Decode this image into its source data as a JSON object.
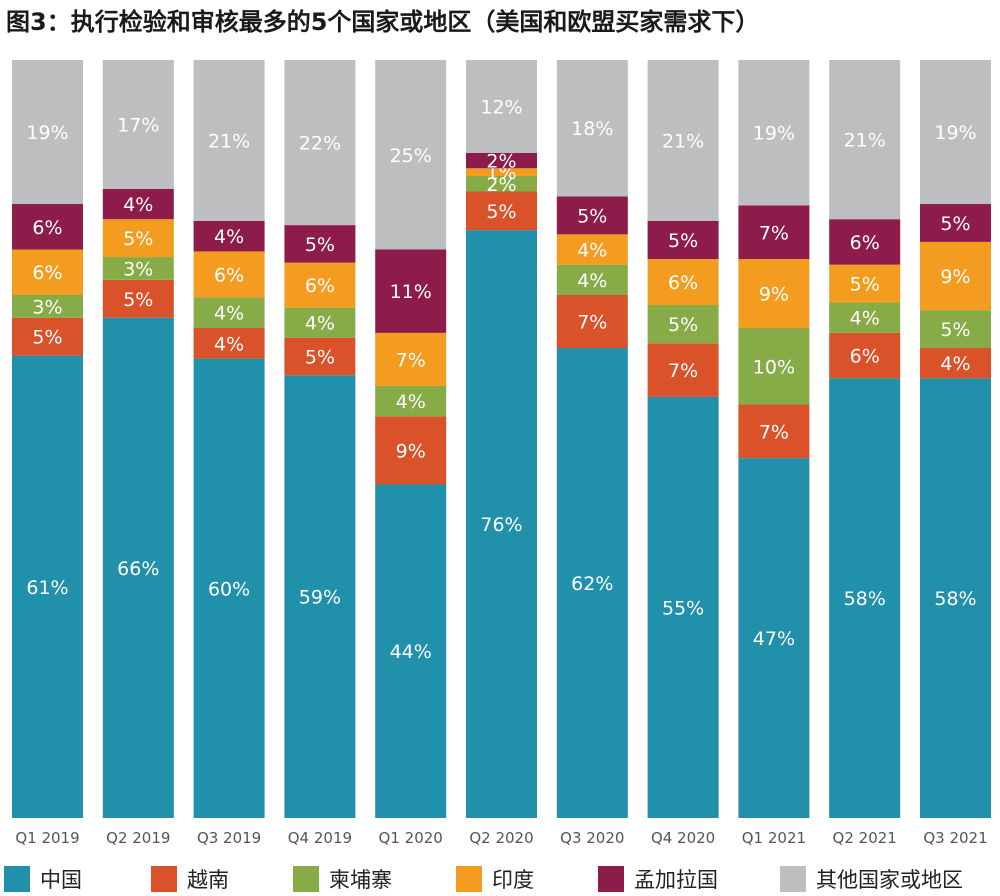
{
  "title": "图3：执行检验和审核最多的5个国家或地区（美国和欧盟买家需求下）",
  "chart_data": {
    "type": "bar",
    "stacked": true,
    "normalized": true,
    "title": "图3：执行检验和审核最多的5个国家或地区（美国和欧盟买家需求下）",
    "xlabel": "",
    "ylabel": "",
    "ylim": [
      0,
      100
    ],
    "grid": false,
    "legend_position": "bottom",
    "categories": [
      "Q1 2019",
      "Q2 2019",
      "Q3 2019",
      "Q4 2019",
      "Q1 2020",
      "Q2 2020",
      "Q3 2020",
      "Q4 2020",
      "Q1 2021",
      "Q2 2021",
      "Q3 2021"
    ],
    "series": [
      {
        "name": "中国",
        "color": "#2190aa",
        "label_color": "#ffffff",
        "values": [
          61,
          66,
          60,
          59,
          44,
          76,
          62,
          55,
          47,
          58,
          58
        ]
      },
      {
        "name": "越南",
        "color": "#d9522a",
        "label_color": "#ffffff",
        "values": [
          5,
          5,
          4,
          5,
          9,
          5,
          7,
          7,
          7,
          6,
          4
        ]
      },
      {
        "name": "柬埔寨",
        "color": "#86ab47",
        "label_color": "#ffffff",
        "values": [
          3,
          3,
          4,
          4,
          4,
          2,
          4,
          5,
          10,
          4,
          5
        ]
      },
      {
        "name": "印度",
        "color": "#f39c1f",
        "label_color": "#ffffff",
        "values": [
          6,
          5,
          6,
          6,
          7,
          1,
          4,
          6,
          9,
          5,
          9
        ]
      },
      {
        "name": "孟加拉国",
        "color": "#8d1c4a",
        "label_color": "#ffffff",
        "values": [
          6,
          4,
          4,
          5,
          11,
          2,
          5,
          5,
          7,
          6,
          5
        ]
      },
      {
        "name": "其他国家或地区",
        "color": "#bdbec0",
        "label_color": "#ffffff",
        "values": [
          19,
          17,
          21,
          22,
          25,
          12,
          18,
          21,
          19,
          21,
          19
        ]
      }
    ]
  }
}
